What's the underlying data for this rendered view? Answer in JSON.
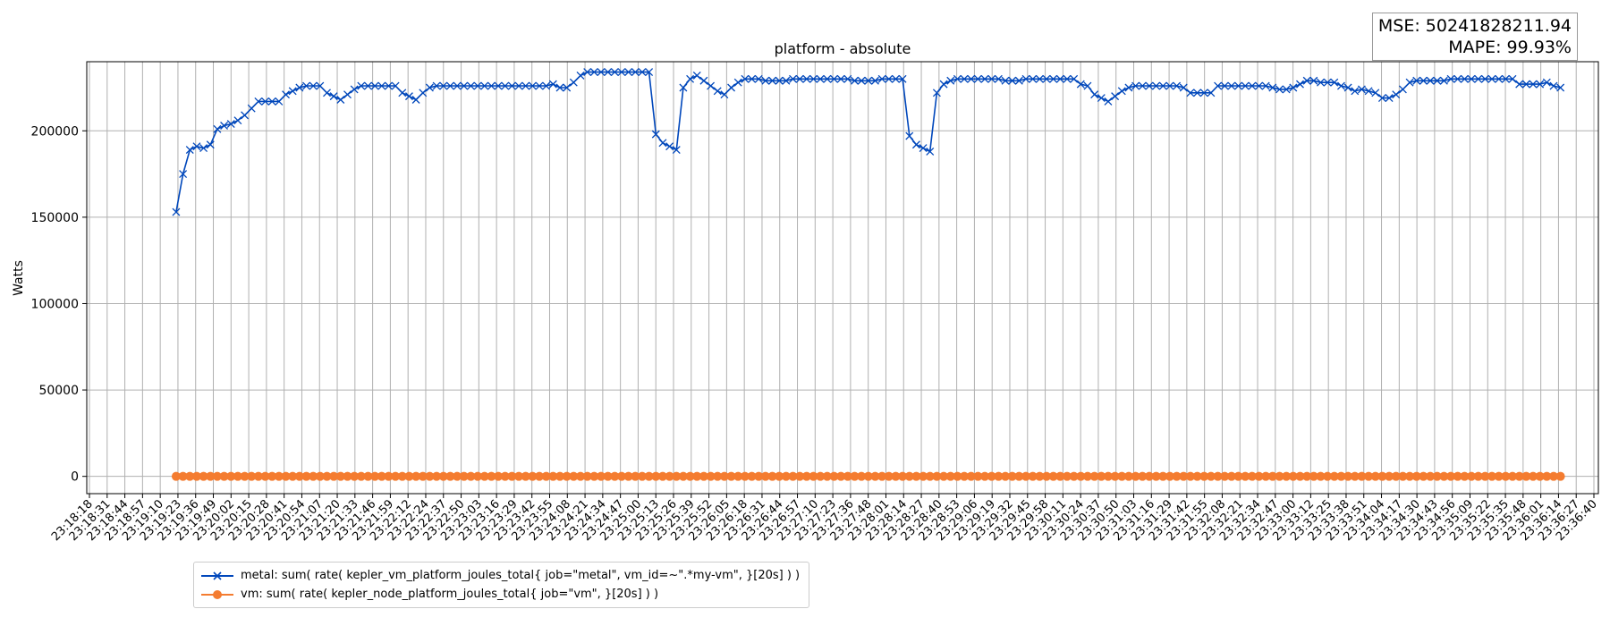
{
  "chart_data": {
    "type": "line",
    "title": "platform - absolute",
    "xlabel": "",
    "ylabel": "Watts",
    "ylim": [
      -10000,
      240000
    ],
    "yticks": [
      0,
      50000,
      100000,
      150000,
      200000
    ],
    "xtick_labels": [
      "23:18:18",
      "23:18:31",
      "23:18:44",
      "23:18:57",
      "23:19:10",
      "23:19:23",
      "23:19:36",
      "23:19:49",
      "23:20:02",
      "23:20:15",
      "23:20:28",
      "23:20:41",
      "23:20:54",
      "23:21:07",
      "23:21:20",
      "23:21:33",
      "23:21:46",
      "23:21:59",
      "23:22:12",
      "23:22:24",
      "23:22:37",
      "23:22:50",
      "23:23:03",
      "23:23:16",
      "23:23:29",
      "23:23:42",
      "23:23:55",
      "23:24:08",
      "23:24:21",
      "23:24:34",
      "23:24:47",
      "23:25:00",
      "23:25:13",
      "23:25:26",
      "23:25:39",
      "23:25:52",
      "23:26:05",
      "23:26:18",
      "23:26:31",
      "23:26:44",
      "23:26:57",
      "23:27:10",
      "23:27:23",
      "23:27:36",
      "23:27:48",
      "23:28:01",
      "23:28:14",
      "23:28:27",
      "23:28:40",
      "23:28:53",
      "23:29:06",
      "23:29:19",
      "23:29:32",
      "23:29:45",
      "23:29:58",
      "23:30:11",
      "23:30:24",
      "23:30:37",
      "23:30:50",
      "23:31:03",
      "23:31:16",
      "23:31:29",
      "23:31:42",
      "23:31:55",
      "23:32:08",
      "23:32:21",
      "23:32:34",
      "23:32:47",
      "23:33:00",
      "23:33:12",
      "23:33:25",
      "23:33:38",
      "23:33:51",
      "23:34:04",
      "23:34:17",
      "23:34:30",
      "23:34:43",
      "23:34:56",
      "23:35:09",
      "23:35:22",
      "23:35:35",
      "23:35:48",
      "23:36:01",
      "23:36:14",
      "23:36:27",
      "23:36:40"
    ],
    "grid": true,
    "legend_position": "lower-left, below axes",
    "series": [
      {
        "name": "metal: sum( rate( kepler_vm_platform_joules_total{ job=\"metal\", vm_id=~\".*my-vm\", }[20s] ) )",
        "color": "#0047bb",
        "marker": "x",
        "values": [
          153000,
          175000,
          189000,
          191000,
          190000,
          192000,
          201000,
          203000,
          204000,
          206000,
          209000,
          213000,
          217000,
          217000,
          217000,
          217000,
          221000,
          223000,
          225000,
          226000,
          226000,
          226000,
          222000,
          220000,
          218000,
          221000,
          224000,
          226000,
          226000,
          226000,
          226000,
          226000,
          226000,
          222000,
          220000,
          218000,
          222000,
          225000,
          226000,
          226000,
          226000,
          226000,
          226000,
          226000,
          226000,
          226000,
          226000,
          226000,
          226000,
          226000,
          226000,
          226000,
          226000,
          226000,
          226000,
          227000,
          225000,
          225000,
          228000,
          232000,
          234000,
          234000,
          234000,
          234000,
          234000,
          234000,
          234000,
          234000,
          234000,
          234000,
          198000,
          193000,
          191000,
          189000,
          225000,
          230000,
          232000,
          229000,
          226000,
          223000,
          221000,
          225000,
          228000,
          230000,
          230000,
          230000,
          229000,
          229000,
          229000,
          229000,
          230000,
          230000,
          230000,
          230000,
          230000,
          230000,
          230000,
          230000,
          230000,
          229000,
          229000,
          229000,
          229000,
          230000,
          230000,
          230000,
          230000,
          197000,
          192000,
          190000,
          188000,
          222000,
          227000,
          229000,
          230000,
          230000,
          230000,
          230000,
          230000,
          230000,
          230000,
          229000,
          229000,
          229000,
          230000,
          230000,
          230000,
          230000,
          230000,
          230000,
          230000,
          230000,
          227000,
          226000,
          221000,
          219000,
          217000,
          220000,
          223000,
          225000,
          226000,
          226000,
          226000,
          226000,
          226000,
          226000,
          226000,
          225000,
          222000,
          222000,
          222000,
          222000,
          226000,
          226000,
          226000,
          226000,
          226000,
          226000,
          226000,
          226000,
          225000,
          224000,
          224000,
          225000,
          227000,
          229000,
          229000,
          228000,
          228000,
          228000,
          226000,
          225000,
          223000,
          224000,
          223000,
          222000,
          219000,
          219000,
          221000,
          224000,
          228000,
          229000,
          229000,
          229000,
          229000,
          229000,
          230000,
          230000,
          230000,
          230000,
          230000,
          230000,
          230000,
          230000,
          230000,
          230000,
          227000,
          227000,
          227000,
          227000,
          228000,
          226000,
          225000
        ]
      },
      {
        "name": "vm: sum( rate( kepler_node_platform_joules_total{ job=\"vm\", }[20s] ) )",
        "color": "#f47c30",
        "marker": "o",
        "values_constant": 0
      }
    ]
  },
  "metrics": {
    "mse": "MSE: 50241828211.94",
    "mape": "MAPE: 99.93%"
  },
  "legend": {
    "metal_label": "metal: sum( rate( kepler_vm_platform_joules_total{ job=\"metal\", vm_id=~\".*my-vm\", }[20s] ) )",
    "vm_label": "vm: sum( rate( kepler_node_platform_joules_total{ job=\"vm\", }[20s] ) )"
  }
}
